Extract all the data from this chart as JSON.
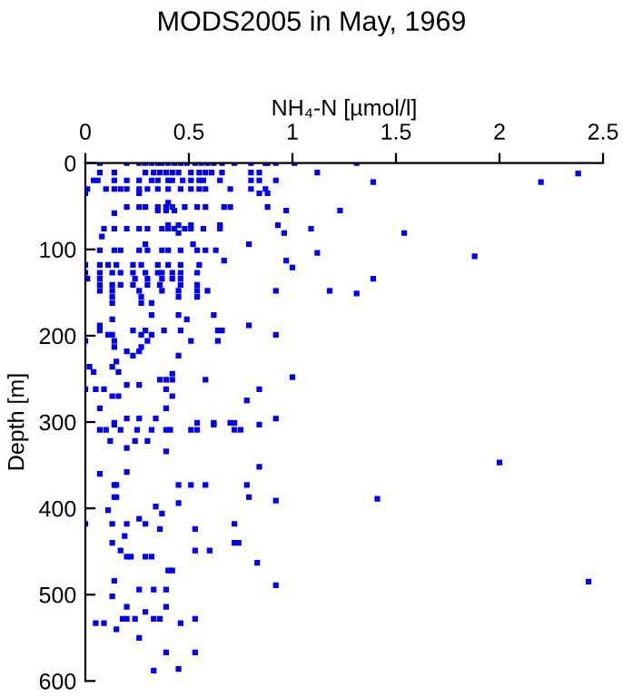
{
  "chart_data": {
    "type": "scatter",
    "title": "MODS2005 in May, 1969",
    "xlabel": "NH₄-N [µmol/l]",
    "ylabel": "Depth [m]",
    "xlim": [
      0,
      2.5
    ],
    "xticks": [
      0,
      0.5,
      1,
      1.5,
      2,
      2.5
    ],
    "ylim": [
      600,
      0
    ],
    "yticks": [
      0,
      100,
      200,
      300,
      400,
      500,
      600
    ],
    "marker": "square",
    "series": [
      {
        "color": "#0000ff",
        "x": [
          0.07,
          0.2,
          0.26,
          0.29,
          0.32,
          0.35,
          0.37,
          0.4,
          0.43,
          0.46,
          0.49,
          0.53,
          0.56,
          0.59,
          0.62,
          0.66,
          0.72,
          0.8,
          0.87,
          0.88,
          1.01,
          0.92,
          1.31,
          0.07,
          0.14,
          0.29,
          0.33,
          0.36,
          0.39,
          0.42,
          0.45,
          0.51,
          0.55,
          0.58,
          0.61,
          0.66,
          0.8,
          0.84,
          1.12,
          2.38,
          0.04,
          0.06,
          0.14,
          0.2,
          0.26,
          0.32,
          0.35,
          0.4,
          0.42,
          0.47,
          0.51,
          0.55,
          0.57,
          0.65,
          0.8,
          0.84,
          0.92,
          1.39,
          2.2,
          0.01,
          0.1,
          0.14,
          0.17,
          0.2,
          0.26,
          0.3,
          0.35,
          0.4,
          0.46,
          0.51,
          0.55,
          0.58,
          0.7,
          0.8,
          0.87,
          0.0,
          0.26,
          0.84,
          0.88,
          0.4,
          0.2,
          0.26,
          0.29,
          0.35,
          0.39,
          0.42,
          0.48,
          0.54,
          0.58,
          0.67,
          0.7,
          0.88,
          0.35,
          0.39,
          0.43,
          0.97,
          1.23,
          0.14,
          0.4,
          0.45,
          0.51,
          0.65,
          0.93,
          0.09,
          0.14,
          0.2,
          0.26,
          0.3,
          0.37,
          0.4,
          0.43,
          0.48,
          0.51,
          0.57,
          0.65,
          1.09,
          0.45,
          0.96,
          1.54,
          0.08,
          0.29,
          0.52,
          0.79,
          0.07,
          0.14,
          0.17,
          0.26,
          0.3,
          0.37,
          0.4,
          0.46,
          0.54,
          0.58,
          0.63,
          1.12,
          1.88,
          0.67,
          0.97,
          0.0,
          0.07,
          0.11,
          0.15,
          0.23,
          0.27,
          0.35,
          0.4,
          0.46,
          0.55,
          1.0,
          0.0,
          0.07,
          0.13,
          0.17,
          0.23,
          0.29,
          0.35,
          0.37,
          0.42,
          0.46,
          0.54,
          0.01,
          0.07,
          0.24,
          0.3,
          0.37,
          0.42,
          0.46,
          1.39,
          0.07,
          0.13,
          0.17,
          0.23,
          0.3,
          0.36,
          0.46,
          0.54,
          0.07,
          0.13,
          0.26,
          0.37,
          0.45,
          0.54,
          0.59,
          0.92,
          1.18,
          1.31,
          0.13,
          0.27,
          0.45,
          0.54,
          0.13,
          0.27,
          0.32,
          0.32,
          0.45,
          0.62,
          0.13,
          0.49,
          0.07,
          0.79,
          0.07,
          0.23,
          0.29,
          0.38,
          0.46,
          0.64,
          0.66,
          0.11,
          0.13,
          0.27,
          0.32,
          0.92,
          0.0,
          0.14,
          0.3,
          0.51,
          0.64,
          0.14,
          0.27,
          0.2,
          0.26,
          0.23,
          0.45,
          0.15,
          0.02,
          0.13,
          0.04,
          0.16,
          0.42,
          1.0,
          0.36,
          0.39,
          0.42,
          0.58,
          0.2,
          0.26,
          0.0,
          0.05,
          0.09,
          0.39,
          0.84,
          0.13,
          0.16,
          0.42,
          0.78,
          0.07,
          0.39,
          0.2,
          0.26,
          0.34,
          0.92,
          0.14,
          0.54,
          0.62,
          0.7,
          0.72,
          0.14,
          0.62,
          0.84,
          0.07,
          0.1,
          0.17,
          0.25,
          0.32,
          0.39,
          0.41,
          0.51,
          0.54,
          0.72,
          0.75,
          0.12,
          0.24,
          0.3,
          0.2,
          0.39,
          2.0,
          0.84,
          0.2,
          0.07,
          0.45,
          0.51,
          0.58,
          0.78,
          0.14,
          0.15,
          0.14,
          0.15,
          0.79,
          1.41,
          0.92,
          0.45,
          0.34,
          0.11,
          0.37,
          0.26,
          0.0,
          0.13,
          0.2,
          0.29,
          0.72,
          0.36,
          0.53,
          0.19,
          0.13,
          0.72,
          0.74,
          0.17,
          0.53,
          0.6,
          0.2,
          0.22,
          0.29,
          0.32,
          0.83,
          0.4,
          0.42,
          0.14,
          2.43,
          0.92,
          0.26,
          0.33,
          0.39,
          0.13,
          0.2,
          0.39,
          0.29,
          0.18,
          0.2,
          0.24,
          0.33,
          0.36,
          0.53,
          0.05,
          0.09,
          0.46,
          0.15,
          0.26,
          0.39,
          0.53,
          0.45,
          0.33
        ],
        "values": [
          0,
          0,
          0,
          0,
          0,
          0,
          0,
          0,
          0,
          0,
          0,
          0,
          0,
          0,
          0,
          0,
          0,
          0,
          0,
          0,
          0,
          0,
          0,
          11,
          11,
          11,
          11,
          11,
          11,
          11,
          11,
          11,
          11,
          11,
          11,
          11,
          11,
          11,
          11,
          12,
          20,
          20,
          20,
          20,
          20,
          20,
          20,
          20,
          20,
          20,
          20,
          20,
          20,
          20,
          20,
          20,
          20,
          22,
          22,
          30,
          30,
          30,
          30,
          30,
          30,
          30,
          30,
          30,
          30,
          30,
          30,
          30,
          30,
          30,
          30,
          35,
          35,
          35,
          35,
          46,
          51,
          51,
          51,
          51,
          51,
          51,
          51,
          51,
          51,
          51,
          51,
          51,
          55,
          55,
          55,
          55,
          55,
          58,
          72,
          72,
          72,
          72,
          72,
          76,
          76,
          76,
          76,
          76,
          76,
          76,
          76,
          76,
          76,
          76,
          76,
          76,
          81,
          81,
          81,
          85,
          94,
          94,
          94,
          101,
          101,
          101,
          101,
          101,
          101,
          101,
          101,
          101,
          101,
          101,
          104,
          108,
          113,
          113,
          118,
          118,
          118,
          118,
          118,
          118,
          118,
          118,
          118,
          118,
          121,
          127,
          127,
          127,
          127,
          127,
          127,
          127,
          127,
          127,
          127,
          127,
          134,
          134,
          134,
          134,
          134,
          134,
          134,
          134,
          141,
          141,
          141,
          141,
          141,
          141,
          141,
          141,
          148,
          148,
          148,
          148,
          148,
          148,
          148,
          148,
          148,
          151,
          155,
          155,
          155,
          155,
          162,
          162,
          162,
          176,
          176,
          176,
          181,
          181,
          188,
          188,
          194,
          194,
          194,
          194,
          194,
          194,
          194,
          199,
          199,
          199,
          199,
          199,
          206,
          206,
          206,
          206,
          206,
          213,
          213,
          218,
          218,
          223,
          223,
          230,
          236,
          236,
          242,
          242,
          244,
          248,
          251,
          251,
          251,
          251,
          257,
          257,
          262,
          262,
          262,
          262,
          262,
          270,
          270,
          270,
          275,
          284,
          284,
          296,
          296,
          296,
          296,
          301,
          301,
          301,
          301,
          301,
          303,
          303,
          303,
          309,
          309,
          309,
          309,
          309,
          309,
          309,
          309,
          309,
          309,
          309,
          322,
          322,
          322,
          330,
          334,
          347,
          352,
          358,
          360,
          373,
          373,
          373,
          373,
          373,
          373,
          387,
          387,
          387,
          389,
          391,
          394,
          398,
          402,
          406,
          412,
          418,
          418,
          418,
          418,
          418,
          424,
          424,
          432,
          440,
          440,
          440,
          449,
          449,
          449,
          456,
          456,
          456,
          456,
          463,
          472,
          472,
          484,
          485,
          489,
          494,
          494,
          494,
          502,
          514,
          514,
          520,
          528,
          528,
          528,
          528,
          528,
          528,
          533,
          533,
          533,
          540,
          550,
          567,
          567,
          586,
          588
        ]
      }
    ]
  }
}
